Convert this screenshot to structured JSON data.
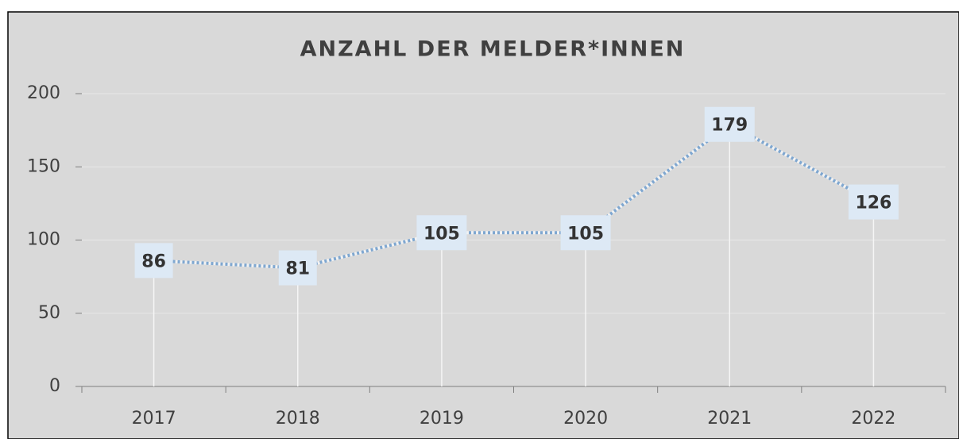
{
  "chart_data": {
    "type": "line",
    "title": "ANZAHL DER MELDER*INNEN",
    "categories": [
      "2017",
      "2018",
      "2019",
      "2020",
      "2021",
      "2022"
    ],
    "values": [
      86,
      81,
      105,
      105,
      179,
      126
    ],
    "color": "#7fa7d0",
    "ylim": [
      0,
      200
    ],
    "yticks": [
      0,
      50,
      100,
      150,
      200
    ],
    "grid": true
  }
}
